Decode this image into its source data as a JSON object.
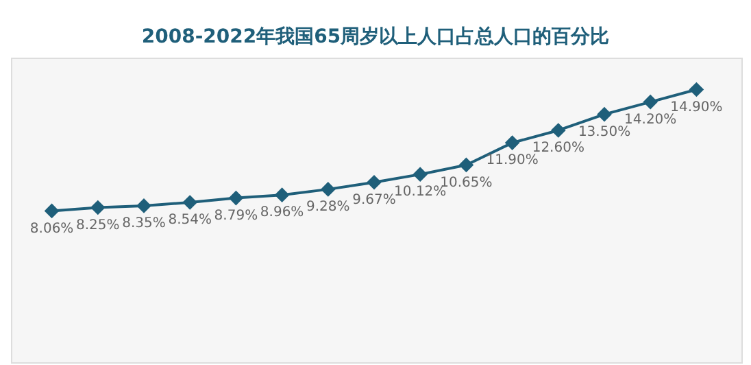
{
  "chart_data": {
    "type": "line",
    "title": "2008-2022年我国65周岁以上人口占总人口的百分比",
    "categories": [
      null,
      null,
      null,
      null,
      null,
      null,
      null,
      null,
      null,
      null,
      null,
      null,
      null,
      null,
      null
    ],
    "series": [
      {
        "color": "#1f5f7a",
        "values": [
          8.06,
          8.25,
          8.35,
          8.54,
          8.79,
          8.96,
          9.28,
          9.67,
          10.12,
          10.65,
          11.9,
          12.6,
          13.5,
          14.2,
          14.9
        ],
        "value_labels": [
          "8.06%",
          "8.25%",
          "8.35%",
          "8.54%",
          "8.79%",
          "8.96%",
          "9.28%",
          "9.67%",
          "10.12%",
          "10.65%",
          "11.90%",
          "12.60%",
          "13.50%",
          "14.20%",
          "14.90%"
        ]
      }
    ],
    "marker": "diamond",
    "line_style": "solid",
    "legend": false,
    "tick_labels": false
  }
}
